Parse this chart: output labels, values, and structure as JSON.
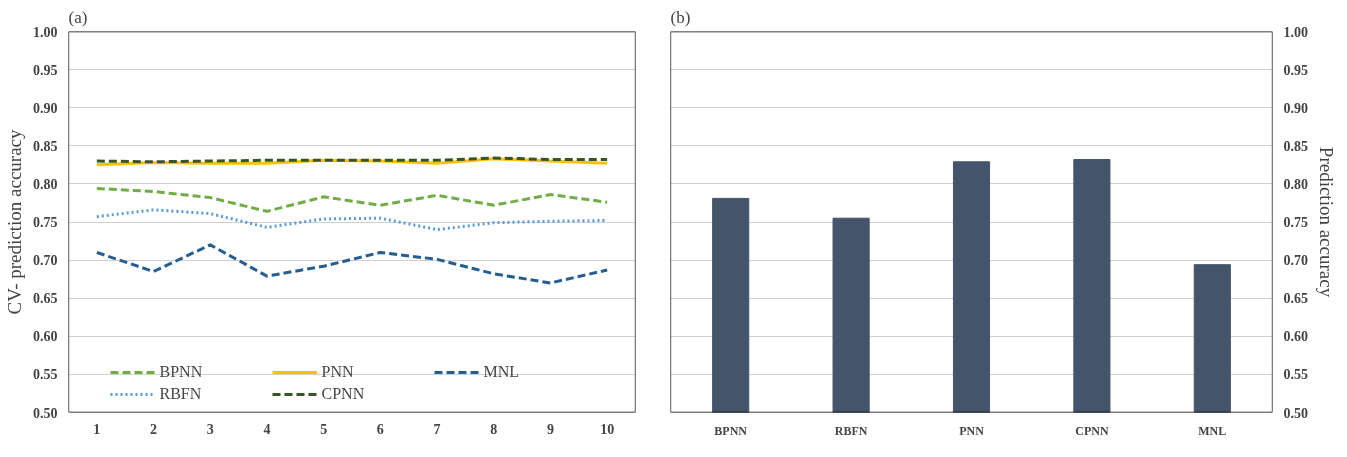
{
  "chart_data": [
    {
      "type": "line",
      "title": "(a)",
      "ylabel": "CV- prediction accuracy",
      "x": [
        1,
        2,
        3,
        4,
        5,
        6,
        7,
        8,
        9,
        10
      ],
      "series": [
        {
          "name": "BPNN",
          "color": "#70ad47",
          "line_style": "dashed",
          "values": [
            0.794,
            0.79,
            0.782,
            0.764,
            0.783,
            0.772,
            0.785,
            0.772,
            0.786,
            0.776
          ]
        },
        {
          "name": "RBFN",
          "color": "#5b9bd5",
          "line_style": "dotted",
          "values": [
            0.757,
            0.766,
            0.761,
            0.743,
            0.754,
            0.755,
            0.74,
            0.749,
            0.751,
            0.752
          ]
        },
        {
          "name": "PNN",
          "color": "#ffc000",
          "line_style": "solid",
          "values": [
            0.825,
            0.828,
            0.827,
            0.827,
            0.831,
            0.83,
            0.827,
            0.833,
            0.83,
            0.827
          ]
        },
        {
          "name": "CPNN",
          "color": "#375623",
          "line_style": "dashed",
          "values": [
            0.83,
            0.829,
            0.83,
            0.831,
            0.831,
            0.831,
            0.831,
            0.834,
            0.832,
            0.832
          ]
        },
        {
          "name": "MNL",
          "color": "#255e91",
          "line_style": "dashed",
          "values": [
            0.71,
            0.685,
            0.72,
            0.679,
            0.692,
            0.71,
            0.701,
            0.682,
            0.67,
            0.687
          ]
        }
      ],
      "xlim": [
        0.5,
        10.5
      ],
      "xticks": [
        1,
        2,
        3,
        4,
        5,
        6,
        7,
        8,
        9,
        10
      ],
      "ylim": [
        0.5,
        1.0
      ],
      "yticks": [
        {
          "value": 0.5,
          "label": "0.50"
        },
        {
          "value": 0.55,
          "label": "0.55"
        },
        {
          "value": 0.6,
          "label": "0.60"
        },
        {
          "value": 0.65,
          "label": "0.65"
        },
        {
          "value": 0.7,
          "label": "0.70"
        },
        {
          "value": 0.75,
          "label": "0.75"
        },
        {
          "value": 0.8,
          "label": "0.80"
        },
        {
          "value": 0.85,
          "label": "0.85"
        },
        {
          "value": 0.9,
          "label": "0.90"
        },
        {
          "value": 0.95,
          "label": "0.95"
        },
        {
          "value": 1.0,
          "label": "1.00"
        }
      ],
      "grid": "y",
      "legend": "bottom",
      "marker": "none"
    },
    {
      "type": "bar",
      "title": "(b)",
      "ylabel": "Prediction accuracy",
      "categories": [
        "BPNN",
        "RBFN",
        "PNN",
        "CPNN",
        "MNL"
      ],
      "values": [
        0.781,
        0.755,
        0.829,
        0.832,
        0.694
      ],
      "color": "#44546a",
      "ylim": [
        0.5,
        1.0
      ],
      "yticks": [
        {
          "value": 0.5,
          "label": "0.50"
        },
        {
          "value": 0.55,
          "label": "0.55"
        },
        {
          "value": 0.6,
          "label": "0.60"
        },
        {
          "value": 0.65,
          "label": "0.65"
        },
        {
          "value": 0.7,
          "label": "0.70"
        },
        {
          "value": 0.75,
          "label": "0.75"
        },
        {
          "value": 0.8,
          "label": "0.80"
        },
        {
          "value": 0.85,
          "label": "0.85"
        },
        {
          "value": 0.9,
          "label": "0.90"
        },
        {
          "value": 0.95,
          "label": "0.95"
        },
        {
          "value": 1.0,
          "label": "1.00"
        }
      ],
      "grid": "y"
    }
  ]
}
